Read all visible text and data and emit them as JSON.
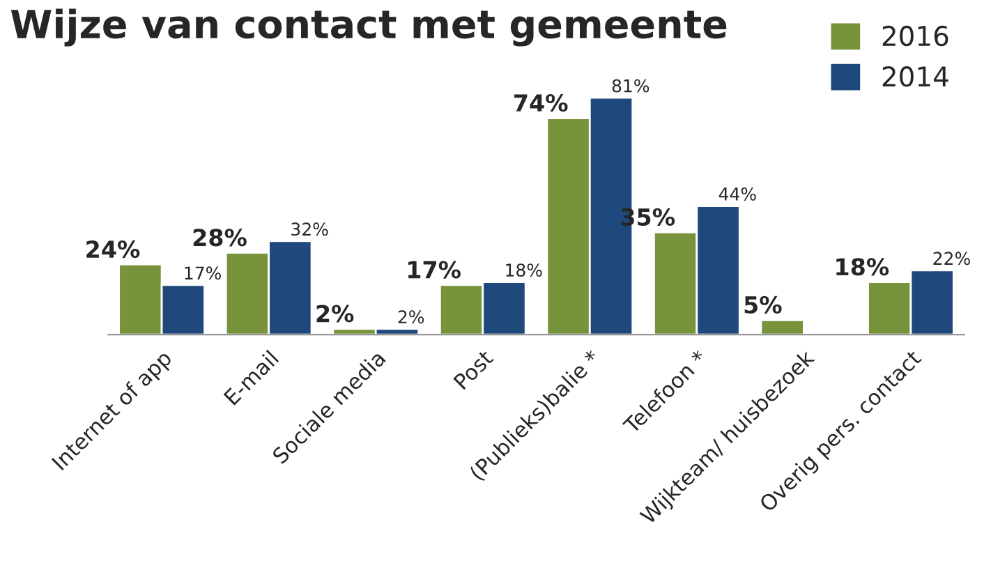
{
  "chart_data": {
    "type": "bar",
    "title": "Wijze van contact met gemeente",
    "categories": [
      "Internet of app",
      "E-mail",
      "Sociale media",
      "Post",
      "(Publieks)balie *",
      "Telefoon *",
      "Wijkteam/ huisbezoek",
      "Overig pers. contact"
    ],
    "series": [
      {
        "name": "2016",
        "color": "#77933c",
        "values": [
          24,
          28,
          2,
          17,
          74,
          35,
          5,
          18
        ],
        "value_labels": [
          "24%",
          "28%",
          "2%",
          "17%",
          "74%",
          "35%",
          "5%",
          "18%"
        ]
      },
      {
        "name": "2014",
        "color": "#1f497d",
        "values": [
          17,
          32,
          2,
          18,
          81,
          44,
          null,
          22
        ],
        "value_labels": [
          "17%",
          "32%",
          "2%",
          "18%",
          "81%",
          "44%",
          null,
          "22%"
        ]
      }
    ],
    "legend": "top right",
    "grid": false
  }
}
